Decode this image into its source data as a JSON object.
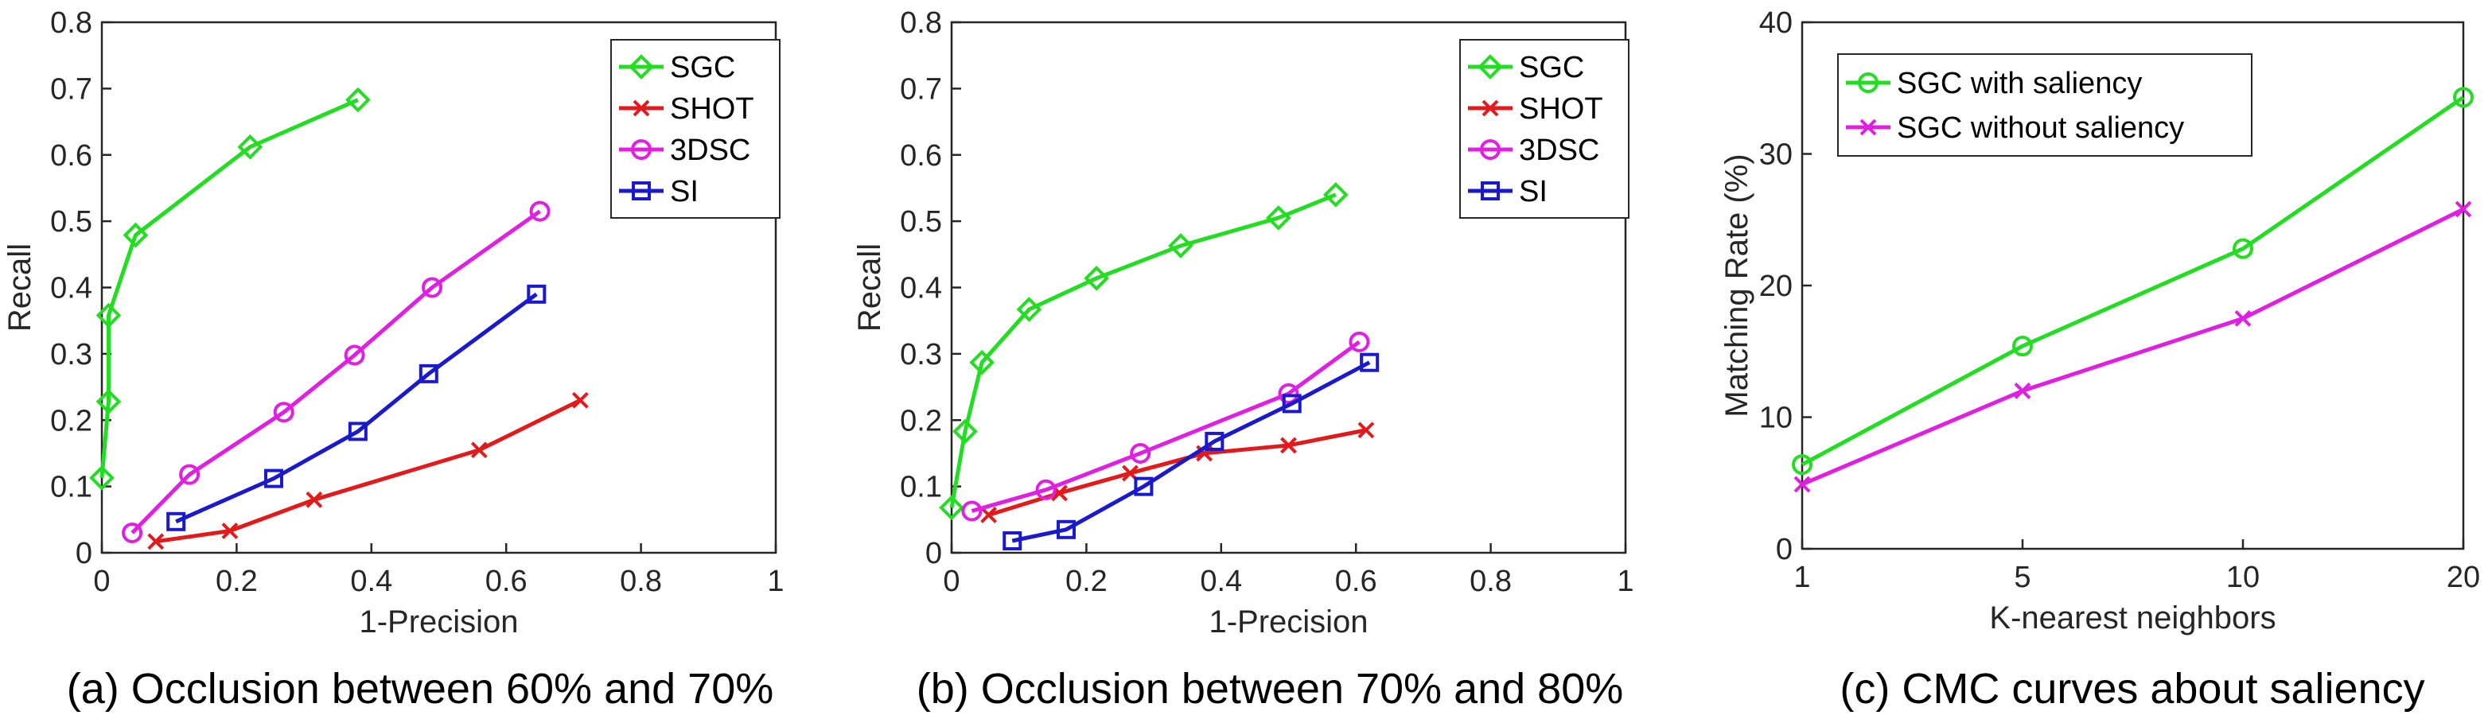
{
  "chart_data": [
    {
      "type": "line",
      "caption": "(a) Occlusion between 60% and 70%",
      "xlabel": "1-Precision",
      "ylabel": "Recall",
      "xlim": [
        0,
        1
      ],
      "ylim": [
        0,
        0.8
      ],
      "xticks": [
        "0",
        "0.2",
        "0.4",
        "0.6",
        "0.8",
        "1"
      ],
      "yticks": [
        "0",
        "0.1",
        "0.2",
        "0.3",
        "0.4",
        "0.5",
        "0.6",
        "0.7",
        "0.8"
      ],
      "legend_position": "top-right",
      "grid": false,
      "series": [
        {
          "name": "SGC",
          "color": "#22dd22",
          "marker": "diamond",
          "x": [
            0.0,
            0.01,
            0.01,
            0.05,
            0.22,
            0.38
          ],
          "y": [
            0.113,
            0.228,
            0.358,
            0.479,
            0.612,
            0.683
          ]
        },
        {
          "name": "SHOT",
          "color": "#e31a1c",
          "marker": "x",
          "x": [
            0.08,
            0.19,
            0.315,
            0.56,
            0.71
          ],
          "y": [
            0.017,
            0.033,
            0.08,
            0.155,
            0.23
          ]
        },
        {
          "name": "3DSC",
          "color": "#e020e0",
          "marker": "circle",
          "x": [
            0.045,
            0.13,
            0.27,
            0.375,
            0.49,
            0.65
          ],
          "y": [
            0.03,
            0.118,
            0.212,
            0.298,
            0.4,
            0.515
          ]
        },
        {
          "name": "SI",
          "color": "#1a1acc",
          "marker": "square",
          "x": [
            0.11,
            0.255,
            0.38,
            0.485,
            0.645
          ],
          "y": [
            0.047,
            0.112,
            0.183,
            0.27,
            0.39
          ]
        }
      ]
    },
    {
      "type": "line",
      "caption": "(b) Occlusion between 70% and 80%",
      "xlabel": "1-Precision",
      "ylabel": "Recall",
      "xlim": [
        0,
        1
      ],
      "ylim": [
        0,
        0.8
      ],
      "xticks": [
        "0",
        "0.2",
        "0.4",
        "0.6",
        "0.8",
        "1"
      ],
      "yticks": [
        "0",
        "0.1",
        "0.2",
        "0.3",
        "0.4",
        "0.5",
        "0.6",
        "0.7",
        "0.8"
      ],
      "legend_position": "top-right",
      "grid": false,
      "series": [
        {
          "name": "SGC",
          "color": "#22dd22",
          "marker": "diamond",
          "x": [
            0.0,
            0.02,
            0.045,
            0.115,
            0.215,
            0.34,
            0.485,
            0.57
          ],
          "y": [
            0.068,
            0.183,
            0.287,
            0.367,
            0.414,
            0.463,
            0.505,
            0.54
          ]
        },
        {
          "name": "SHOT",
          "color": "#e31a1c",
          "marker": "x",
          "x": [
            0.055,
            0.16,
            0.265,
            0.375,
            0.5,
            0.615
          ],
          "y": [
            0.057,
            0.09,
            0.12,
            0.15,
            0.162,
            0.185
          ]
        },
        {
          "name": "3DSC",
          "color": "#e020e0",
          "marker": "circle",
          "x": [
            0.03,
            0.14,
            0.28,
            0.5,
            0.605
          ],
          "y": [
            0.063,
            0.095,
            0.15,
            0.24,
            0.318
          ]
        },
        {
          "name": "SI",
          "color": "#1a1acc",
          "marker": "square",
          "x": [
            0.09,
            0.17,
            0.285,
            0.39,
            0.505,
            0.62
          ],
          "y": [
            0.018,
            0.035,
            0.1,
            0.168,
            0.225,
            0.287
          ]
        }
      ]
    },
    {
      "type": "line",
      "caption": "(c) CMC curves about saliency",
      "xlabel": "K-nearest neighbors",
      "ylabel": "Matching Rate (%)",
      "x_categories": [
        "1",
        "5",
        "10",
        "20"
      ],
      "ylim": [
        0,
        40
      ],
      "yticks": [
        "0",
        "10",
        "20",
        "30",
        "40"
      ],
      "legend_position": "top-left",
      "grid": false,
      "series": [
        {
          "name": "SGC with saliency",
          "color": "#22dd22",
          "marker": "circle",
          "values": [
            6.4,
            15.4,
            22.8,
            34.3
          ]
        },
        {
          "name": "SGC without saliency",
          "color": "#e020e0",
          "marker": "x",
          "values": [
            4.9,
            12.0,
            17.5,
            25.8
          ]
        }
      ]
    }
  ]
}
